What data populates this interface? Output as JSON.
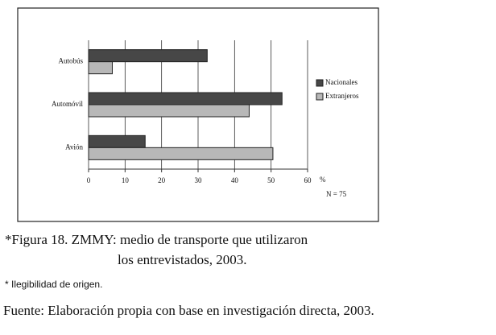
{
  "chart_data": {
    "type": "bar",
    "orientation": "horizontal",
    "categories": [
      "Autobús",
      "Automóvil",
      "Avión"
    ],
    "series": [
      {
        "name": "Nacionales",
        "color": "#474747",
        "values": [
          32.5,
          53,
          15.5
        ]
      },
      {
        "name": "Extranjeros",
        "color": "#b8b8b8",
        "values": [
          6.5,
          44,
          50.5
        ]
      }
    ],
    "xlim": [
      0,
      60
    ],
    "xticks": [
      0,
      10,
      20,
      30,
      40,
      50,
      60
    ],
    "x_unit": "%",
    "annotation": "N = 75",
    "grid": true,
    "legend": "right"
  },
  "caption": [
    "*Figura 18. ZMMY: medio de transporte que utilizaron",
    "los entrevistados, 2003."
  ],
  "note": "* Ilegibilidad de origen.",
  "source": "Fuente: Elaboración propia con base en investigación directa, 2003."
}
